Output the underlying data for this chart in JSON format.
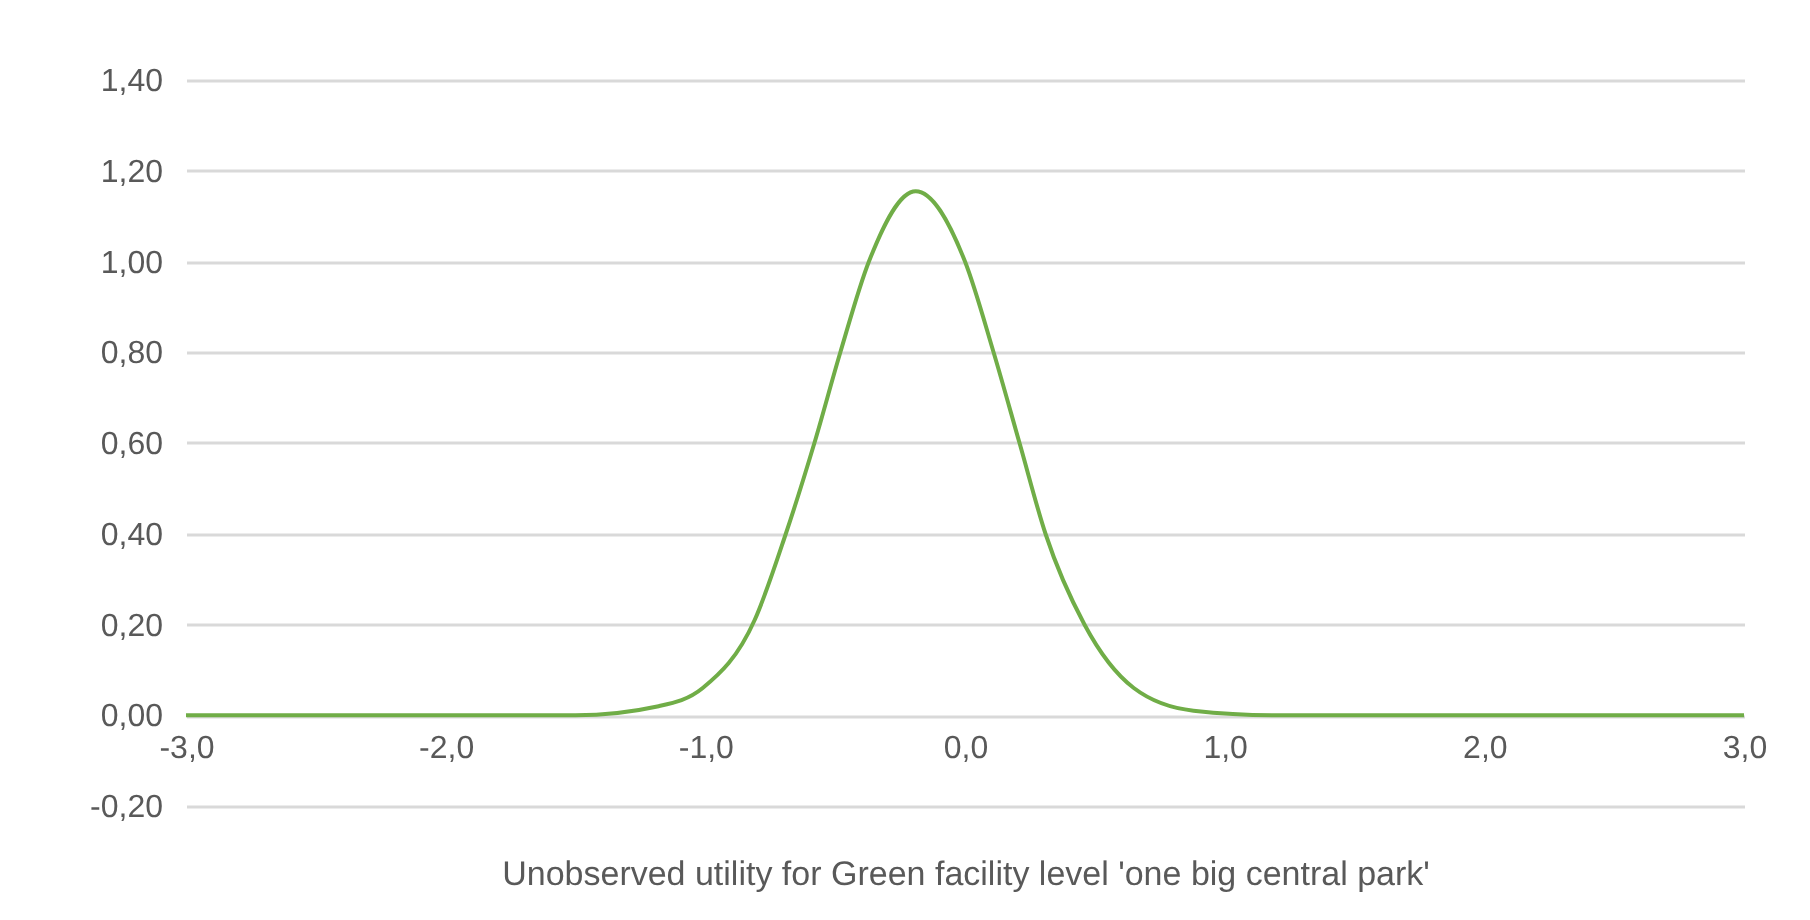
{
  "chart_data": {
    "type": "line",
    "xlabel": "Unobserved utility for Green facility level 'one big central park'",
    "x": [
      -3.0,
      -1.5,
      -1.18,
      -1.01,
      -0.81,
      -0.69,
      -0.58,
      -0.48,
      -0.37,
      -0.19,
      0.0,
      0.11,
      0.21,
      0.31,
      0.46,
      0.65,
      0.88,
      1.2,
      3.0
    ],
    "series": [
      {
        "color": "#70ad47",
        "values": [
          0,
          0,
          0.02,
          0.06,
          0.21,
          0.4,
          0.6,
          0.8,
          1.0,
          1.155,
          1.0,
          0.8,
          0.6,
          0.4,
          0.2,
          0.06,
          0.01,
          0,
          0
        ]
      }
    ],
    "xlim": [
      -3.0,
      3.0
    ],
    "ylim": [
      -0.2,
      1.4
    ],
    "xticks": [
      {
        "value": -3,
        "label": "-3,0"
      },
      {
        "value": -2,
        "label": "-2,0"
      },
      {
        "value": -1,
        "label": "-1,0"
      },
      {
        "value": 0,
        "label": "0,0"
      },
      {
        "value": 1,
        "label": "1,0"
      },
      {
        "value": 2,
        "label": "2,0"
      },
      {
        "value": 3,
        "label": "3,0"
      }
    ],
    "yticks": [
      {
        "value": -0.2,
        "label": "-0,20"
      },
      {
        "value": 0,
        "label": "0,00"
      },
      {
        "value": 0.2,
        "label": "0,20"
      },
      {
        "value": 0.4,
        "label": "0,40"
      },
      {
        "value": 0.6,
        "label": "0,60"
      },
      {
        "value": 0.8,
        "label": "0,80"
      },
      {
        "value": 1.0,
        "label": "1,00"
      },
      {
        "value": 1.2,
        "label": "1,20"
      },
      {
        "value": 1.4,
        "label": "1,40"
      }
    ],
    "grid": "y",
    "marker": "none",
    "line_style": "solid"
  }
}
